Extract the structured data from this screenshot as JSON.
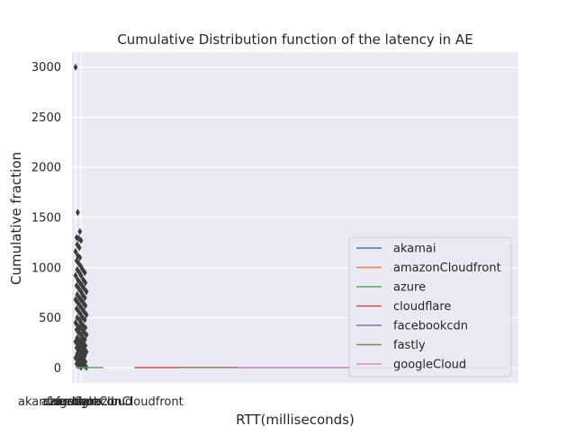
{
  "chart_data": {
    "type": "box",
    "title": "Cumulative Distribution function of the latency in AE",
    "xlabel": "RTT(milliseconds)",
    "ylabel": "Cumulative fraction",
    "ylim": [
      -150,
      3150
    ],
    "yticks": [
      0,
      500,
      1000,
      1500,
      2000,
      2500,
      3000
    ],
    "categories": [
      "akamai",
      "amazonCloudfront",
      "azure",
      "cloudflare",
      "facebookcdn",
      "fastly",
      "googleCloud"
    ],
    "xtick_labels": [
      "akamai",
      "amazonCloudfront",
      "azure",
      "cloudflare",
      "facebookcdn",
      "fastly",
      "googleCloud"
    ],
    "legend": {
      "position": "lower-right",
      "entries": [
        "akamai",
        "amazonCloudfront",
        "azure",
        "cloudflare",
        "facebookcdn",
        "fastly",
        "googleCloud"
      ]
    },
    "grid": true,
    "background": "#eaeaf2",
    "colors": {
      "akamai": "#4c72b0",
      "amazonCloudfront": "#dd8452",
      "azure": "#55a868",
      "cloudflare": "#c44e52",
      "facebookcdn": "#8172b3",
      "fastly": "#937860",
      "googleCloud": "#da8bc3",
      "outlier": "#3d3d3d"
    },
    "outliers": [
      3000,
      1550,
      1360,
      1300,
      1290,
      1270,
      1230,
      1200,
      1160,
      1120,
      1100,
      1070,
      1040,
      1010,
      980,
      950,
      920,
      880,
      850,
      820,
      790,
      760,
      730,
      700,
      680,
      650,
      620,
      590,
      560,
      530,
      500,
      480,
      450,
      420,
      400,
      380,
      350,
      330,
      300,
      280,
      260,
      240,
      220,
      200,
      180,
      160,
      140,
      120,
      100,
      80,
      60,
      40,
      20,
      5
    ],
    "segments": [
      {
        "series": "azure",
        "x0": 0.008,
        "x1": 0.07,
        "y": 2
      },
      {
        "series": "cloudflare",
        "x0": 0.14,
        "x1": 0.24,
        "y": 2
      },
      {
        "series": "fastly",
        "x0": 0.24,
        "x1": 0.37,
        "y": 4
      },
      {
        "series": "facebookcdn",
        "x0": 0.37,
        "x1": 0.98,
        "y": 1
      },
      {
        "series": "googleCloud",
        "x0": 0.37,
        "x1": 0.62,
        "y": 3
      }
    ]
  }
}
